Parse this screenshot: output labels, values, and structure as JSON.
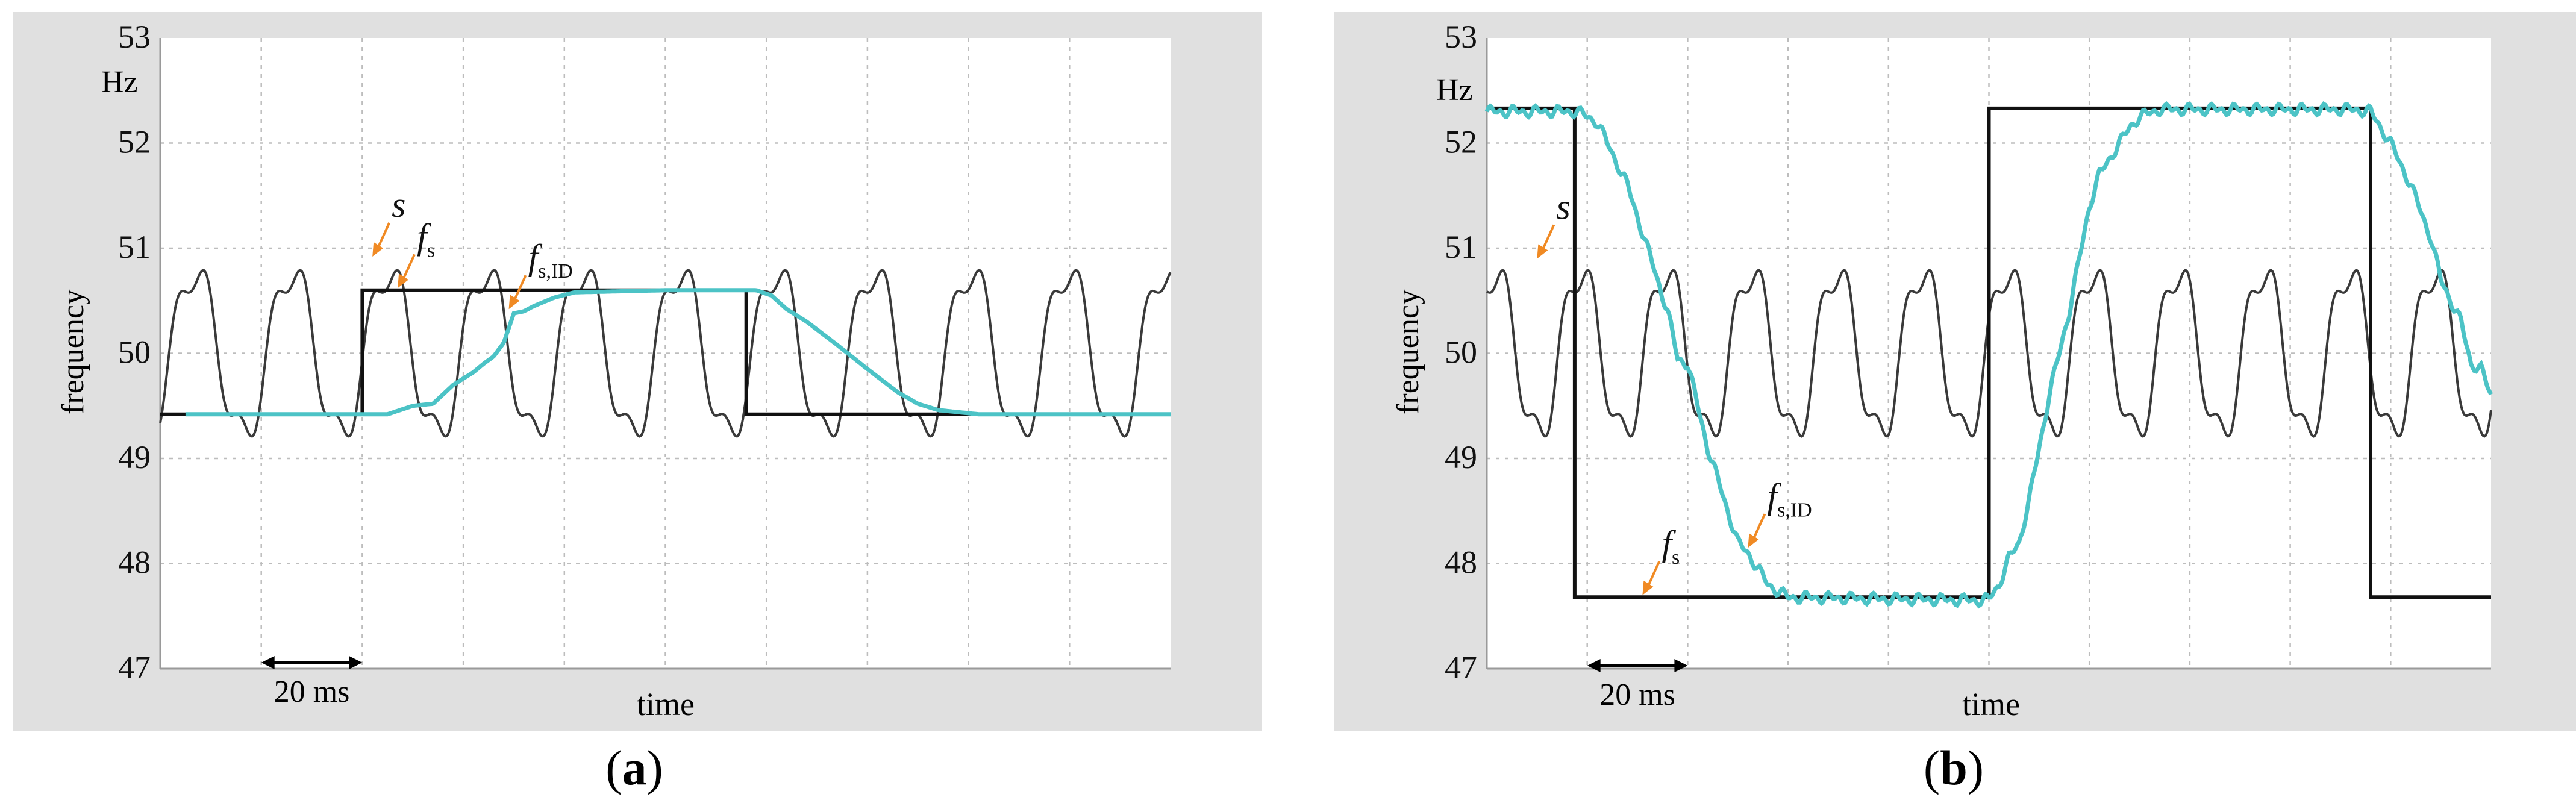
{
  "figure": {
    "captions": [
      {
        "open": "(",
        "letter": "a",
        "close": ")"
      },
      {
        "open": "(",
        "letter": "b",
        "close": ")"
      }
    ]
  },
  "colors": {
    "frame": "#e0e0e0",
    "plot_bg": "#ffffff",
    "grid": "#bdbdbd",
    "signal": "#3a3a3a",
    "step": "#111111",
    "identified": "#4cc3c6",
    "annotation": "#f08a24"
  },
  "chart_data": [
    {
      "type": "line",
      "panel": "a",
      "ylabel": "frequency",
      "yunit": "Hz",
      "xlabel": "time",
      "ylim": [
        47,
        53
      ],
      "yticks": [
        "47",
        "48",
        "49",
        "50",
        "51",
        "52",
        "53"
      ],
      "xlim_ms": [
        0,
        200
      ],
      "grid": true,
      "scale_bar": {
        "label": "20 ms",
        "from_ms": 20,
        "to_ms": 40
      },
      "series": [
        {
          "name": "s",
          "role": "signal",
          "center": 50,
          "amplitude": 0.92,
          "period_ms": 19.2,
          "phase_ms": 2,
          "start_ms": 0,
          "end_ms": 200
        },
        {
          "name": "f_s",
          "role": "step",
          "points": [
            [
              0,
              49.42
            ],
            [
              40,
              49.42
            ],
            [
              40,
              50.6
            ],
            [
              116,
              50.6
            ],
            [
              116,
              49.42
            ],
            [
              200,
              49.42
            ]
          ]
        },
        {
          "name": "f_s,ID",
          "role": "identified",
          "points": [
            [
              5,
              49.42
            ],
            [
              45,
              49.42
            ],
            [
              50,
              49.5
            ],
            [
              54,
              49.52
            ],
            [
              58,
              49.7
            ],
            [
              62,
              49.82
            ],
            [
              64,
              49.9
            ],
            [
              66,
              49.97
            ],
            [
              68,
              50.1
            ],
            [
              70,
              50.38
            ],
            [
              72,
              50.4
            ],
            [
              74,
              50.45
            ],
            [
              78,
              50.53
            ],
            [
              82,
              50.58
            ],
            [
              100,
              50.6
            ],
            [
              118,
              50.6
            ],
            [
              121,
              50.55
            ],
            [
              124,
              50.42
            ],
            [
              128,
              50.3
            ],
            [
              134,
              50.08
            ],
            [
              140,
              49.85
            ],
            [
              146,
              49.63
            ],
            [
              150,
              49.52
            ],
            [
              154,
              49.46
            ],
            [
              162,
              49.42
            ],
            [
              200,
              49.42
            ]
          ]
        }
      ],
      "annotations": [
        {
          "label": "s",
          "label_sub": "",
          "tip_x_ms": 42,
          "tip_y": 50.92
        },
        {
          "label": "f",
          "label_sub": "s",
          "tip_x_ms": 47,
          "tip_y": 50.62
        },
        {
          "label": "f",
          "label_sub": "s,ID",
          "tip_x_ms": 69,
          "tip_y": 50.42
        }
      ]
    },
    {
      "type": "line",
      "panel": "b",
      "ylabel": "frequency",
      "yunit": "Hz",
      "xlabel": "time",
      "ylim": [
        47,
        53
      ],
      "yticks": [
        "47",
        "48",
        "49",
        "50",
        "51",
        "52",
        "53"
      ],
      "xlim_ms": [
        0,
        200
      ],
      "grid": true,
      "scale_bar": {
        "label": "20 ms",
        "from_ms": 20,
        "to_ms": 40
      },
      "series": [
        {
          "name": "s",
          "role": "signal",
          "center": 50,
          "amplitude": 0.92,
          "period_ms": 17.0,
          "phase_ms": -2.6,
          "start_ms": 0,
          "end_ms": 200
        },
        {
          "name": "f_s",
          "role": "step",
          "points": [
            [
              0,
              52.33
            ],
            [
              17.5,
              52.33
            ],
            [
              17.5,
              47.68
            ],
            [
              100,
              47.68
            ],
            [
              100,
              52.33
            ],
            [
              176,
              52.33
            ],
            [
              176,
              47.68
            ],
            [
              200,
              47.68
            ]
          ]
        },
        {
          "name": "f_s,ID",
          "role": "identified",
          "jitter": true,
          "points": [
            [
              0,
              52.3
            ],
            [
              18,
              52.3
            ],
            [
              22,
              52.2
            ],
            [
              24,
              52.0
            ],
            [
              26,
              51.8
            ],
            [
              28,
              51.6
            ],
            [
              30,
              51.3
            ],
            [
              32,
              51.0
            ],
            [
              34,
              50.7
            ],
            [
              36,
              50.4
            ],
            [
              38,
              49.95
            ],
            [
              40,
              49.9
            ],
            [
              42,
              49.5
            ],
            [
              44,
              49.1
            ],
            [
              46,
              48.8
            ],
            [
              48,
              48.5
            ],
            [
              50,
              48.2
            ],
            [
              52,
              48.1
            ],
            [
              54,
              47.95
            ],
            [
              56,
              47.8
            ],
            [
              60,
              47.68
            ],
            [
              98,
              47.65
            ],
            [
              100,
              47.66
            ],
            [
              102,
              47.8
            ],
            [
              104,
              48.05
            ],
            [
              106,
              48.2
            ],
            [
              108,
              48.6
            ],
            [
              110,
              49.1
            ],
            [
              112,
              49.6
            ],
            [
              114,
              50.0
            ],
            [
              116,
              50.4
            ],
            [
              118,
              50.9
            ],
            [
              120,
              51.4
            ],
            [
              122,
              51.7
            ],
            [
              124,
              51.85
            ],
            [
              126,
              52.0
            ],
            [
              128,
              52.15
            ],
            [
              130,
              52.25
            ],
            [
              134,
              52.32
            ],
            [
              172,
              52.32
            ],
            [
              176,
              52.3
            ],
            [
              180,
              52.0
            ],
            [
              184,
              51.6
            ],
            [
              188,
              51.1
            ],
            [
              190,
              50.7
            ],
            [
              194,
              50.3
            ],
            [
              196,
              49.9
            ],
            [
              198,
              49.85
            ],
            [
              200,
              49.6
            ]
          ]
        }
      ],
      "annotations": [
        {
          "label": "s",
          "label_sub": "",
          "tip_x_ms": 10,
          "tip_y": 50.9
        },
        {
          "label": "f",
          "label_sub": "s",
          "tip_x_ms": 31,
          "tip_y": 47.7
        },
        {
          "label": "f",
          "label_sub": "s,ID",
          "tip_x_ms": 52,
          "tip_y": 48.15
        }
      ]
    }
  ]
}
